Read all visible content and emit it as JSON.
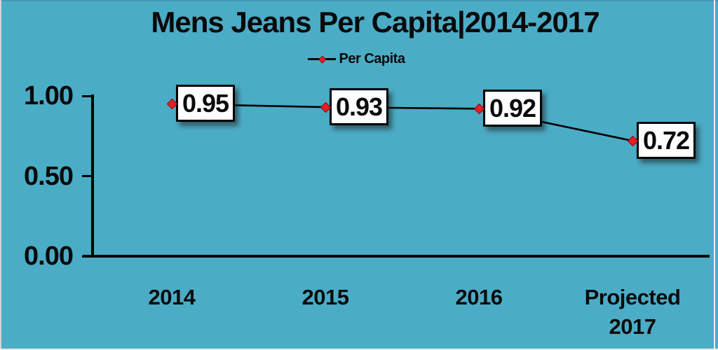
{
  "colors": {
    "background": "#4BACC6",
    "axis": "#000000",
    "text": "#0a0a0a",
    "marker": "#ec1c24",
    "data_label_background": "#ffffff",
    "data_label_border": "#000000"
  },
  "chart_data": {
    "type": "line",
    "title": "Mens Jeans Per Capita|2014-2017",
    "legend_label": "Per Capita",
    "legend_position": "top",
    "grid": false,
    "categories": [
      "2014",
      "2015",
      "2016",
      "Projected 2017"
    ],
    "series": [
      {
        "name": "Per Capita",
        "values": [
          0.95,
          0.93,
          0.92,
          0.72
        ]
      }
    ],
    "data_labels": [
      "0.95",
      "0.93",
      "0.92",
      "0.72"
    ],
    "y_ticks": [
      "1.00",
      "0.50",
      "0.00"
    ],
    "y_tick_values": [
      1.0,
      0.5,
      0.0
    ],
    "ylim": [
      0,
      1.0
    ]
  }
}
